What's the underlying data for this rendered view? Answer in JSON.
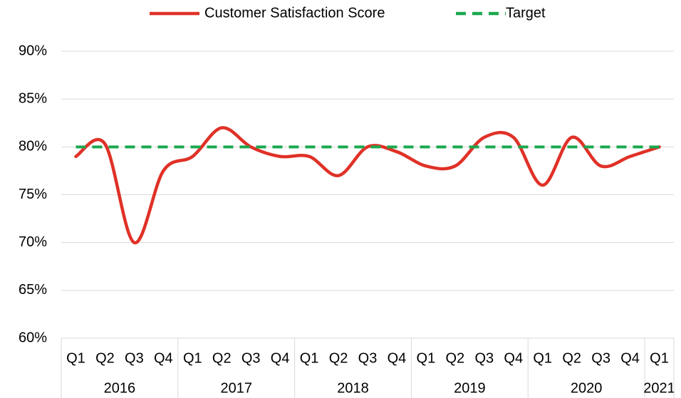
{
  "chart_data": {
    "type": "line",
    "smooth": true,
    "categories": [
      "Q1",
      "Q2",
      "Q3",
      "Q4",
      "Q1",
      "Q2",
      "Q3",
      "Q4",
      "Q1",
      "Q2",
      "Q3",
      "Q4",
      "Q1",
      "Q2",
      "Q3",
      "Q4",
      "Q1",
      "Q2",
      "Q3",
      "Q4",
      "Q1"
    ],
    "category_groups": [
      {
        "label": "2016",
        "count": 4
      },
      {
        "label": "2017",
        "count": 4
      },
      {
        "label": "2018",
        "count": 4
      },
      {
        "label": "2019",
        "count": 4
      },
      {
        "label": "2020",
        "count": 4
      },
      {
        "label": "2021",
        "count": 1
      }
    ],
    "series": [
      {
        "name": "Customer Satisfaction Score",
        "color": "#e03127",
        "style": "solid",
        "values": [
          79,
          80.3,
          70,
          77.5,
          79,
          82,
          80,
          79,
          79,
          77,
          80,
          79.5,
          78,
          78,
          81,
          81,
          76,
          81,
          78,
          79,
          80
        ]
      },
      {
        "name": "Target",
        "color": "#1aa84f",
        "style": "dashed",
        "values": [
          80,
          80,
          80,
          80,
          80,
          80,
          80,
          80,
          80,
          80,
          80,
          80,
          80,
          80,
          80,
          80,
          80,
          80,
          80,
          80,
          80
        ]
      }
    ],
    "ylim": [
      60,
      90
    ],
    "yticks": [
      {
        "value": 60,
        "label": "60%"
      },
      {
        "value": 65,
        "label": "65%"
      },
      {
        "value": 70,
        "label": "70%"
      },
      {
        "value": 75,
        "label": "75%"
      },
      {
        "value": 80,
        "label": "80%"
      },
      {
        "value": 85,
        "label": "85%"
      },
      {
        "value": 90,
        "label": "90%"
      }
    ],
    "grid": true,
    "legend": "top"
  }
}
